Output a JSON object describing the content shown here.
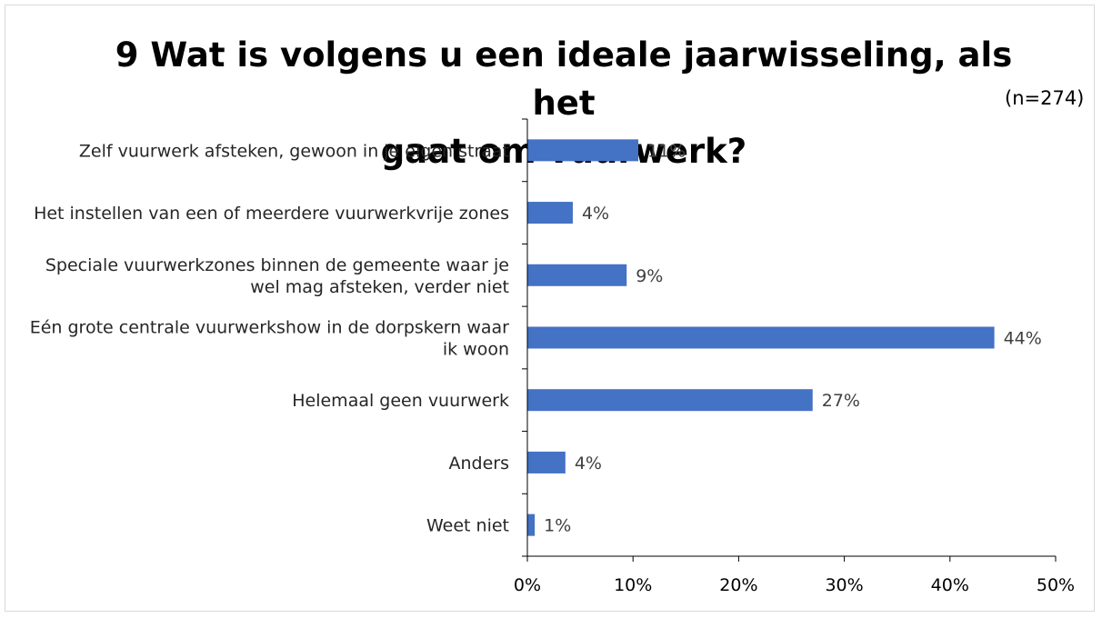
{
  "chart_data": {
    "type": "bar",
    "orientation": "horizontal",
    "title": "9 Wat is volgens u een ideale jaarwisseling, als het gaat om vuurwerk?",
    "title_lines": [
      "9 Wat is volgens u een ideale jaarwisseling, als het",
      "gaat om vuurwerk?"
    ],
    "annotation": "(n=274)",
    "categories": [
      [
        "Zelf vuurwerk afsteken, gewoon in je eigen straat"
      ],
      [
        "Het instellen van een of meerdere vuurwerkvrije zones"
      ],
      [
        "Speciale vuurwerkzones binnen de gemeente waar je",
        "wel mag afsteken, verder niet"
      ],
      [
        "Eén grote centrale vuurwerkshow in de dorpskern waar",
        "ik woon"
      ],
      [
        "Helemaal geen vuurwerk"
      ],
      [
        "Anders"
      ],
      [
        "Weet niet"
      ]
    ],
    "values": [
      10.5,
      4.3,
      9.4,
      44.2,
      27.0,
      3.6,
      0.7
    ],
    "data_labels": [
      "11%",
      "4%",
      "9%",
      "44%",
      "27%",
      "4%",
      "1%"
    ],
    "xlim": [
      0,
      50
    ],
    "x_ticks": [
      0,
      10,
      20,
      30,
      40,
      50
    ],
    "x_tick_labels": [
      "0%",
      "10%",
      "20%",
      "30%",
      "40%",
      "50%"
    ],
    "bar_color": "#4472c4",
    "grid": false,
    "legend": "none"
  }
}
